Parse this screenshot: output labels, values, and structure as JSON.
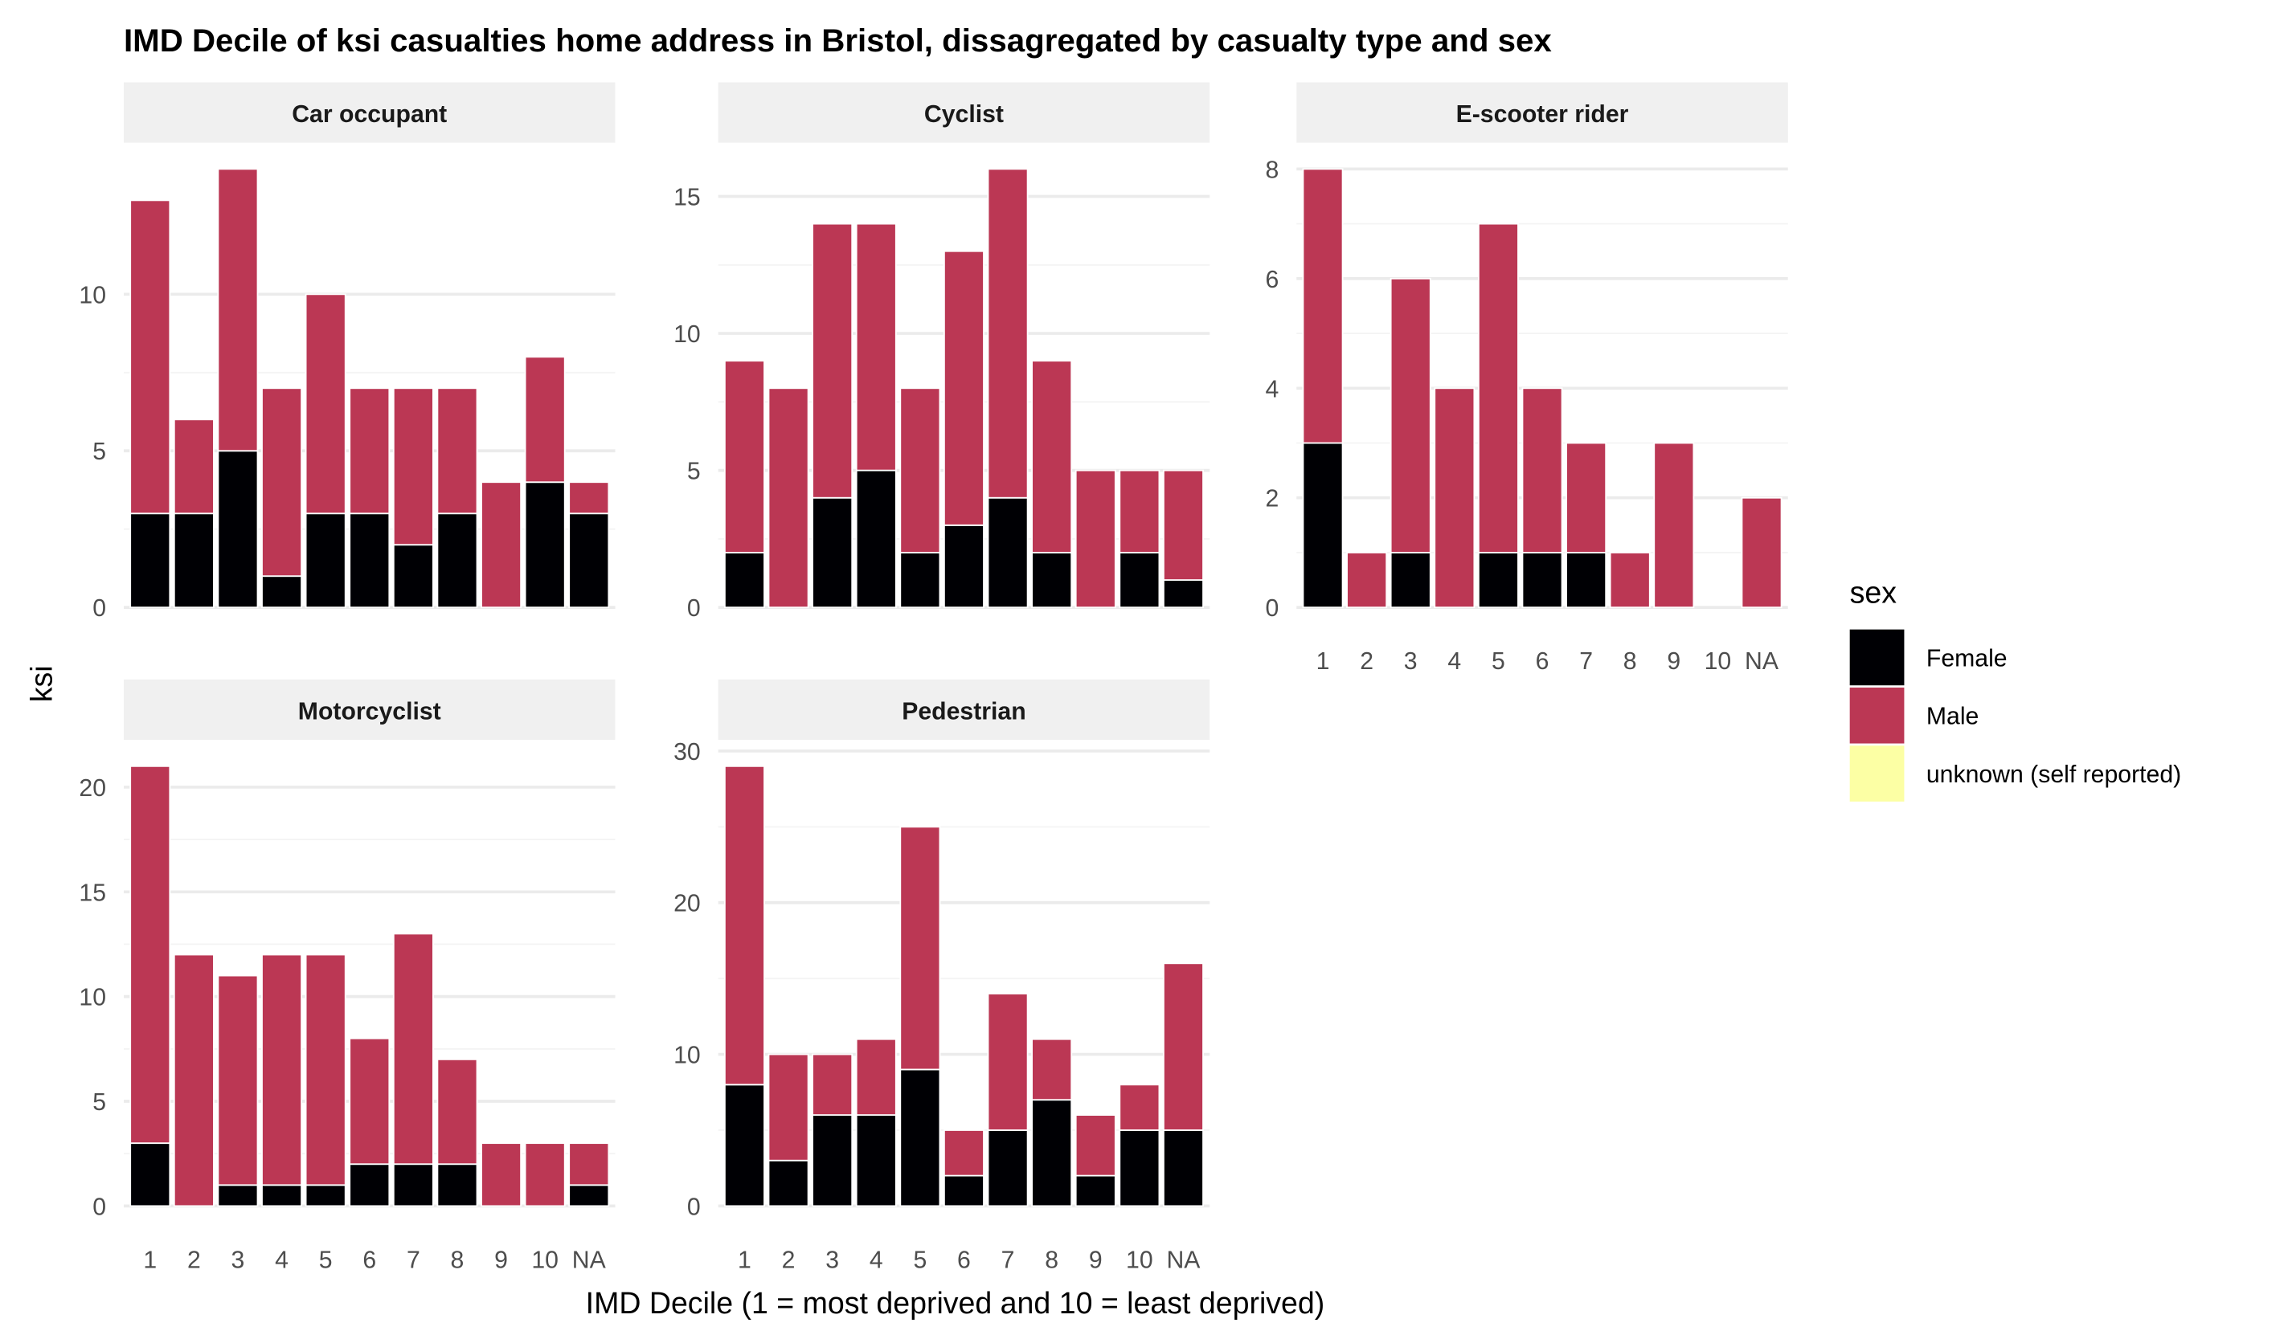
{
  "chart_data": {
    "type": "bar",
    "stacked": true,
    "title": "IMD Decile of ksi casualties home address in Bristol, dissagregated by casualty type and sex",
    "xlabel": "IMD Decile (1 = most deprived and 10 = least deprived)",
    "ylabel": "ksi",
    "categories": [
      "1",
      "2",
      "3",
      "4",
      "5",
      "6",
      "7",
      "8",
      "9",
      "10",
      "NA"
    ],
    "legend": {
      "title": "sex",
      "placement": "right",
      "entries": [
        {
          "label": "Female",
          "color": "#000004"
        },
        {
          "label": "Male",
          "color": "#BB3754"
        },
        {
          "label": "unknown (self reported)",
          "color": "#FCFFA4"
        }
      ]
    },
    "grid": true,
    "panels": [
      {
        "name": "Car occupant",
        "ylim": [
          0,
          14.7
        ],
        "yticks": [
          0,
          5,
          10
        ],
        "series": [
          {
            "name": "Female",
            "values": [
              3,
              3,
              5,
              1,
              3,
              3,
              2,
              3,
              0,
              4,
              3
            ]
          },
          {
            "name": "Male",
            "values": [
              10,
              3,
              9,
              6,
              7,
              4,
              5,
              4,
              4,
              4,
              1
            ]
          },
          {
            "name": "unknown (self reported)",
            "values": [
              0,
              0,
              0,
              0,
              0,
              0,
              0,
              0,
              0,
              0,
              0
            ]
          }
        ]
      },
      {
        "name": "Cyclist",
        "ylim": [
          0,
          16.8
        ],
        "yticks": [
          0,
          5,
          10,
          15
        ],
        "series": [
          {
            "name": "Female",
            "values": [
              2,
              0,
              4,
              5,
              2,
              3,
              4,
              2,
              0,
              2,
              1
            ]
          },
          {
            "name": "Male",
            "values": [
              7,
              8,
              10,
              9,
              6,
              10,
              12,
              7,
              5,
              3,
              4
            ]
          },
          {
            "name": "unknown (self reported)",
            "values": [
              0,
              0,
              0,
              0,
              0,
              0,
              0,
              0,
              0,
              0,
              0
            ]
          }
        ]
      },
      {
        "name": "E-scooter rider",
        "ylim": [
          0,
          8.4
        ],
        "yticks": [
          0,
          2,
          4,
          6,
          8
        ],
        "series": [
          {
            "name": "Female",
            "values": [
              3,
              0,
              1,
              0,
              1,
              1,
              1,
              0,
              0,
              0,
              0
            ]
          },
          {
            "name": "Male",
            "values": [
              5,
              1,
              5,
              4,
              6,
              3,
              2,
              1,
              3,
              0,
              2
            ]
          },
          {
            "name": "unknown (self reported)",
            "values": [
              0,
              0,
              0,
              0,
              0,
              0,
              0,
              0,
              0,
              0,
              0
            ]
          }
        ]
      },
      {
        "name": "Motorcyclist",
        "ylim": [
          0,
          22.05
        ],
        "yticks": [
          0,
          5,
          10,
          15,
          20
        ],
        "series": [
          {
            "name": "Female",
            "values": [
              3,
              0,
              1,
              1,
              1,
              2,
              2,
              2,
              0,
              0,
              1
            ]
          },
          {
            "name": "Male",
            "values": [
              18,
              12,
              10,
              11,
              11,
              6,
              11,
              5,
              3,
              3,
              2
            ]
          },
          {
            "name": "unknown (self reported)",
            "values": [
              0,
              0,
              0,
              0,
              0,
              0,
              0,
              0,
              0,
              0,
              0
            ]
          }
        ]
      },
      {
        "name": "Pedestrian",
        "ylim": [
          0,
          30.45
        ],
        "yticks": [
          0,
          10,
          20,
          30
        ],
        "series": [
          {
            "name": "Female",
            "values": [
              8,
              3,
              6,
              6,
              9,
              2,
              5,
              7,
              2,
              5,
              5
            ]
          },
          {
            "name": "Male",
            "values": [
              21,
              7,
              4,
              5,
              16,
              3,
              9,
              4,
              4,
              3,
              11
            ]
          },
          {
            "name": "unknown (self reported)",
            "values": [
              0,
              0,
              0,
              0,
              0,
              0,
              0,
              0,
              0,
              0,
              0
            ]
          }
        ]
      }
    ]
  }
}
